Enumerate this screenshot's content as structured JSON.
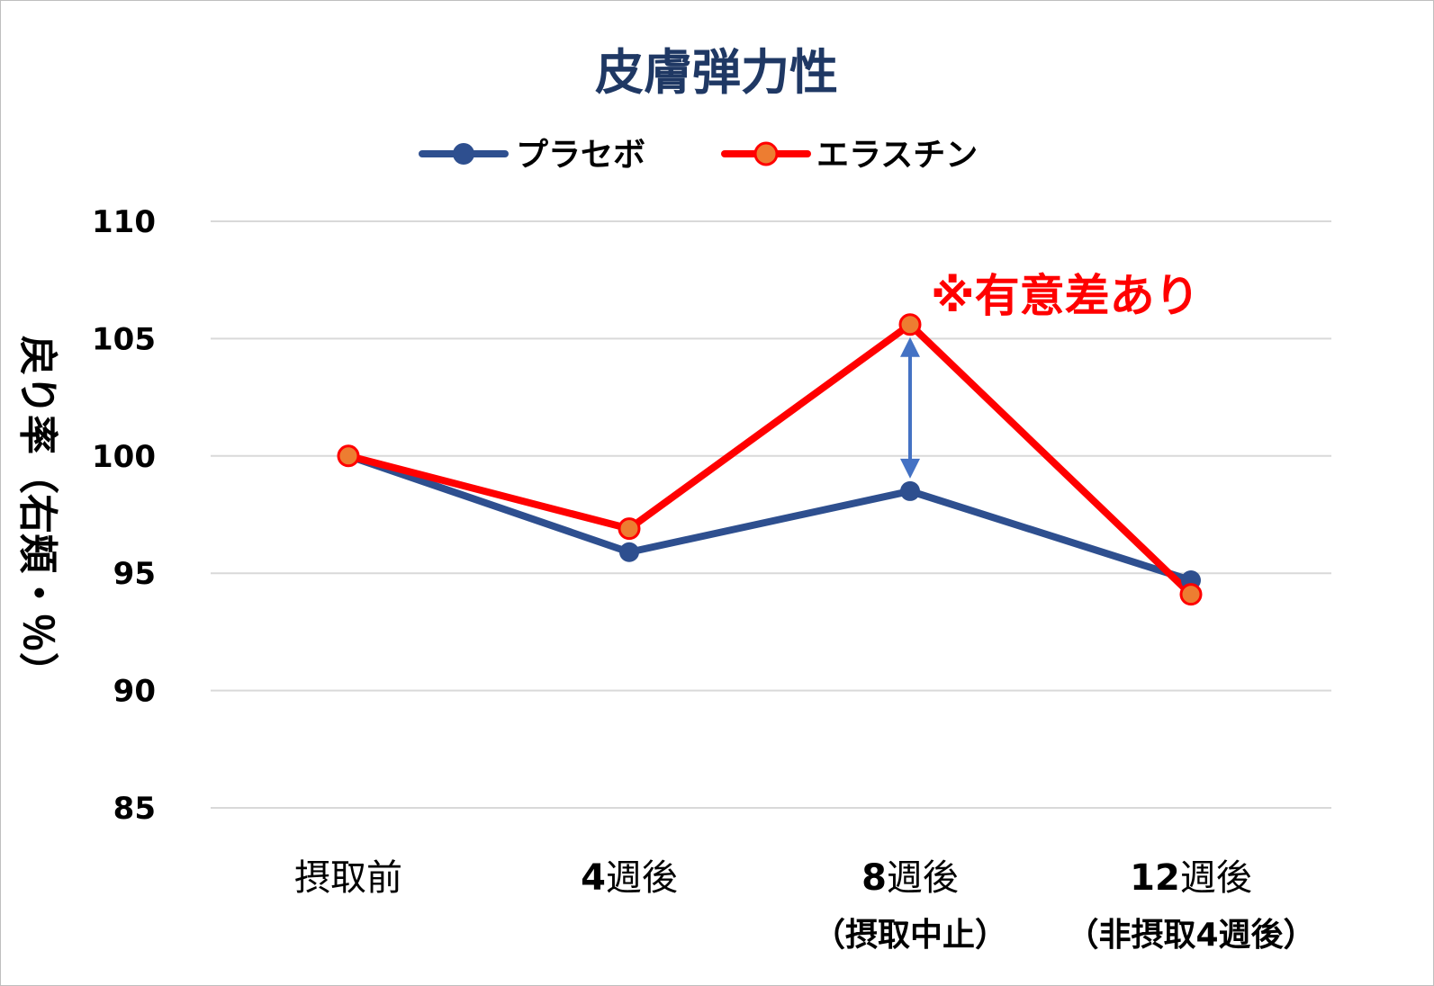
{
  "colors": {
    "title": "#1f3864",
    "placebo": "#2e4f8f",
    "elastin_line": "#ff0000",
    "elastin_marker_fill": "#ed7d31",
    "arrow": "#4472c4",
    "grid": "#d9d9d9",
    "annotation": "#ff0000"
  },
  "chart_data": {
    "type": "line",
    "title": "皮膚弾力性",
    "ylabel": "戻り率（右頬・％）",
    "ylim": [
      85,
      110
    ],
    "yticks": [
      85,
      90,
      95,
      100,
      105,
      110
    ],
    "grid": true,
    "legend_position": "top",
    "categories": [
      {
        "main_num": "",
        "main_text": "摂取前",
        "sub": ""
      },
      {
        "main_num": "4",
        "main_text": "週後",
        "sub": ""
      },
      {
        "main_num": "8",
        "main_text": "週後",
        "sub": "（摂取中止）"
      },
      {
        "main_num": "12",
        "main_text": "週後",
        "sub": "（非摂取4週後）"
      }
    ],
    "series": [
      {
        "name": "プラセボ",
        "values": [
          100,
          95.9,
          98.5,
          94.7
        ]
      },
      {
        "name": "エラスチン",
        "values": [
          100,
          96.9,
          105.6,
          94.1
        ]
      }
    ],
    "annotation": {
      "text": "※有意差あり",
      "category_index": 2,
      "arrow_from": 98.5,
      "arrow_to": 105.6
    }
  }
}
